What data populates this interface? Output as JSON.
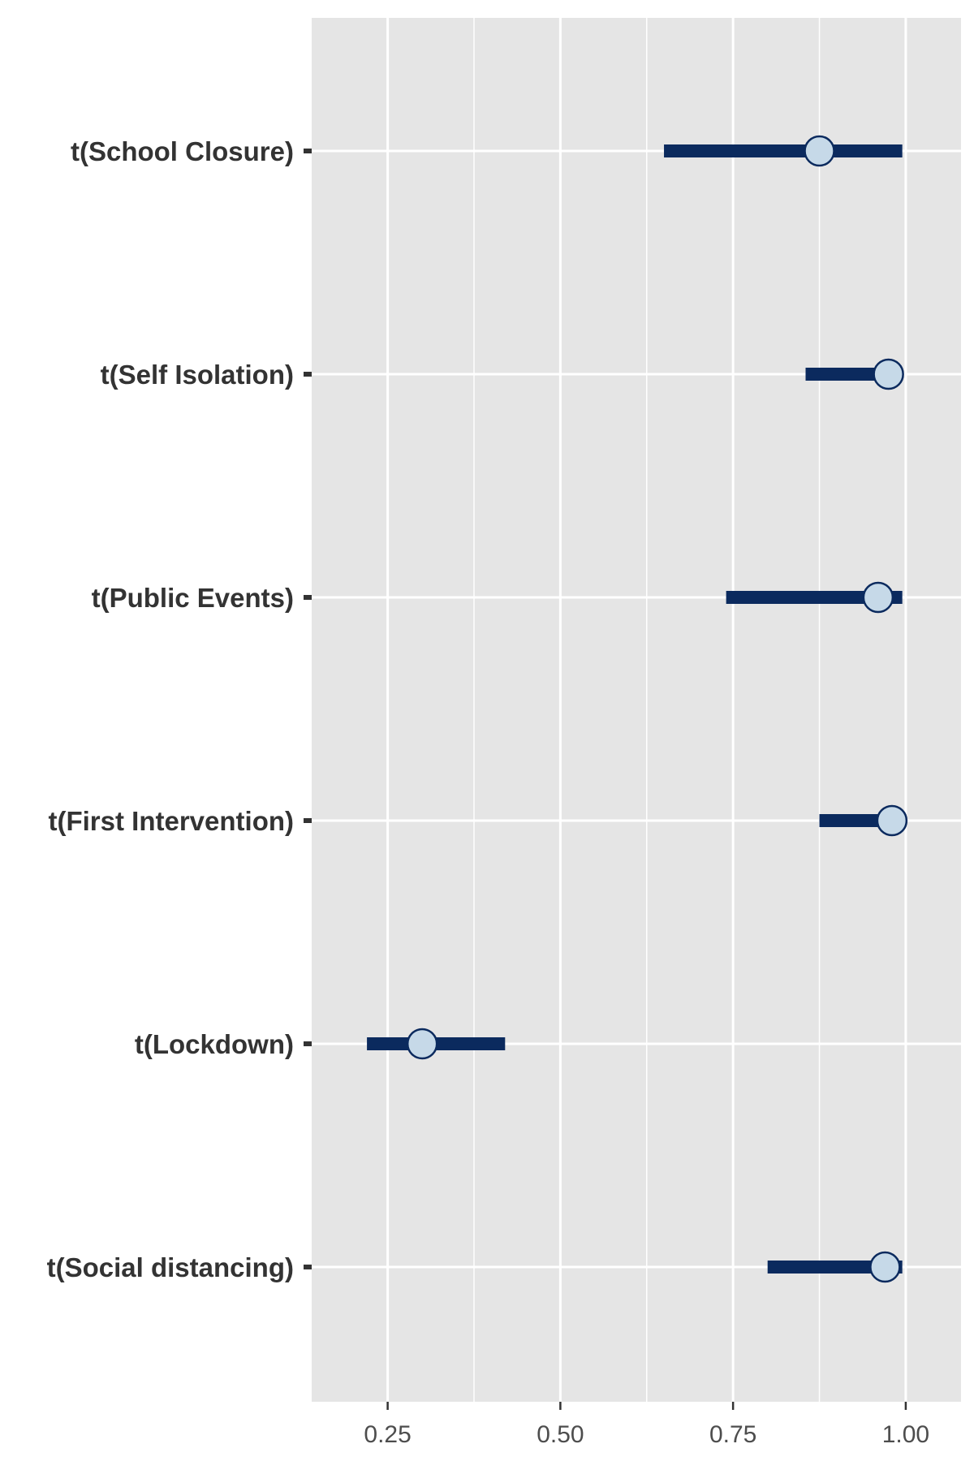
{
  "chart_data": {
    "type": "interval",
    "categories": [
      "t(School Closure)",
      "t(Self Isolation)",
      "t(Public Events)",
      "t(First Intervention)",
      "t(Lockdown)",
      "t(Social distancing)"
    ],
    "series": [
      {
        "point": [
          0.875,
          0.975,
          0.96,
          0.98,
          0.3,
          0.97
        ],
        "lower": [
          0.65,
          0.855,
          0.74,
          0.875,
          0.22,
          0.8
        ],
        "upper": [
          0.995,
          0.975,
          0.995,
          0.98,
          0.42,
          0.995
        ]
      }
    ],
    "xticks": [
      0.25,
      0.5,
      0.75,
      1.0
    ],
    "xtick_labels": [
      "0.25",
      "0.50",
      "0.75",
      "1.00"
    ],
    "xlim": [
      0.14,
      1.08
    ],
    "title": "",
    "xlabel": "",
    "ylabel": "",
    "grid": true,
    "colors": {
      "panel": "#e5e5e5",
      "gridline": "#ffffff",
      "interval": "#0b2a5e",
      "point_fill": "#c6d9e8",
      "point_stroke": "#0b2a5e",
      "text": "#333333"
    }
  }
}
